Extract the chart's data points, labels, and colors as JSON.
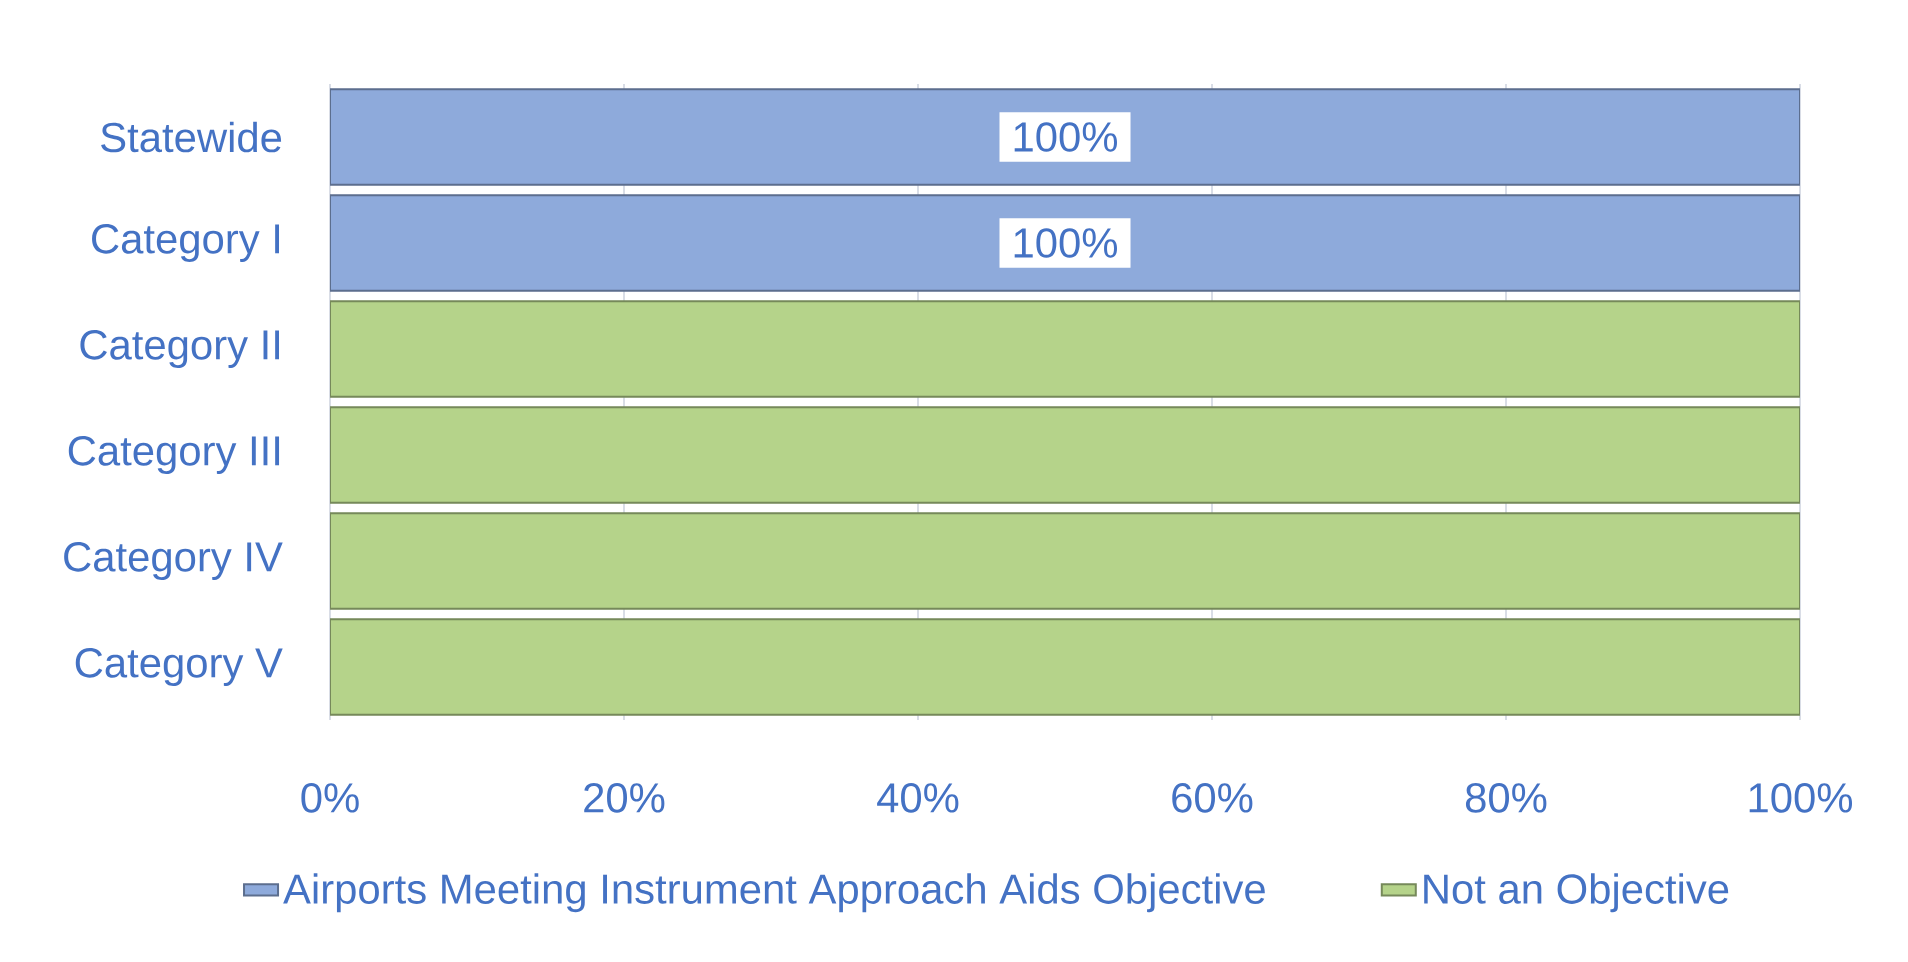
{
  "chart_data": {
    "type": "bar",
    "orientation": "horizontal",
    "stacked": true,
    "categories": [
      "Statewide",
      "Category I",
      "Category II",
      "Category III",
      "Category IV",
      "Category V"
    ],
    "series": [
      {
        "name": "Airports Meeting Instrument Approach Aids Objective",
        "color": "#8eaadb",
        "values": [
          100,
          100,
          0,
          0,
          0,
          0
        ],
        "value_labels": [
          "100%",
          "100%",
          null,
          null,
          null,
          null
        ]
      },
      {
        "name": "Not an Objective",
        "color": "#b5d38a",
        "values": [
          0,
          0,
          100,
          100,
          100,
          100
        ]
      }
    ],
    "xlim": [
      0,
      100
    ],
    "xticks": [
      {
        "value": 0,
        "label": "0%"
      },
      {
        "value": 20,
        "label": "20%"
      },
      {
        "value": 40,
        "label": "40%"
      },
      {
        "value": 60,
        "label": "60%"
      },
      {
        "value": 80,
        "label": "80%"
      },
      {
        "value": 100,
        "label": "100%"
      }
    ],
    "grid": "x",
    "legend": "bottom"
  }
}
